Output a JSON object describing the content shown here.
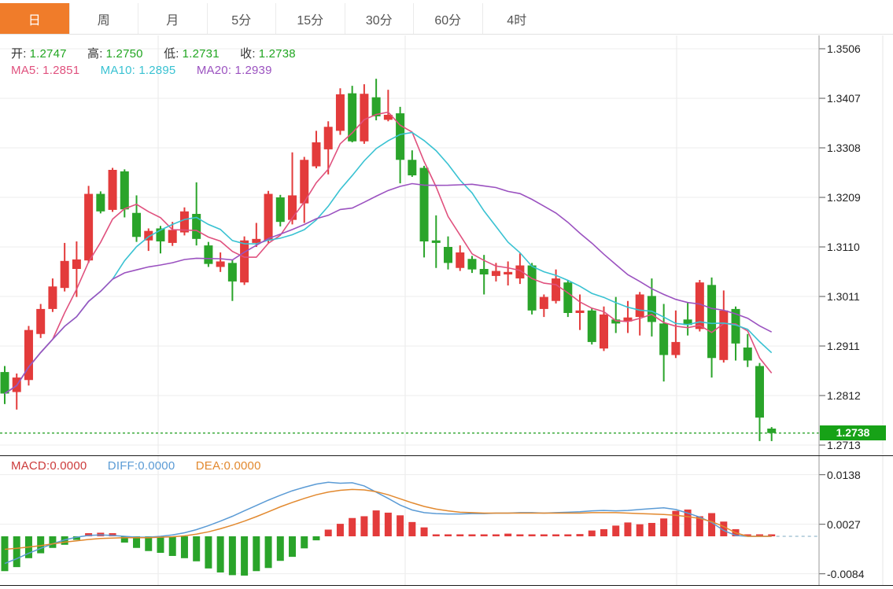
{
  "toolbar": {
    "tabs": [
      {
        "label": "日",
        "active": true
      },
      {
        "label": "周",
        "active": false
      },
      {
        "label": "月",
        "active": false
      },
      {
        "label": "5分",
        "active": false
      },
      {
        "label": "15分",
        "active": false
      },
      {
        "label": "30分",
        "active": false
      },
      {
        "label": "60分",
        "active": false
      },
      {
        "label": "4时",
        "active": false
      }
    ],
    "active_bg": "#f07c2a"
  },
  "legend_ohlc": {
    "open_label": "开:",
    "open_value": "1.2747",
    "high_label": "高:",
    "high_value": "1.2750",
    "low_label": "低:",
    "low_value": "1.2731",
    "close_label": "收:",
    "close_value": "1.2738",
    "value_color": "#21a621"
  },
  "legend_ma": {
    "ma5": "MA5: 1.2851",
    "ma5_color": "#e0517e",
    "ma10": "MA10: 1.2895",
    "ma10_color": "#39c2d2",
    "ma20": "MA20: 1.2939",
    "ma20_color": "#9b52c0"
  },
  "legend_macd": {
    "macd": "MACD:0.0000",
    "macd_color": "#cc3b3b",
    "diff": "DIFF:0.0000",
    "diff_color": "#5b9bd5",
    "dea": "DEA:0.0000",
    "dea_color": "#e2892f"
  },
  "price_axis": {
    "ticks": [
      "1.3506",
      "1.3407",
      "1.3308",
      "1.3209",
      "1.3110",
      "1.3011",
      "1.2911",
      "1.2812",
      "1.2713"
    ],
    "current_label": "1.2738",
    "current_box_color": "#17a217"
  },
  "macd_axis": {
    "ticks": [
      "0.0138",
      "0.0027",
      "-0.0084"
    ]
  },
  "colors": {
    "up": "#e33b3b",
    "down": "#2aa42a",
    "grid": "#ededed",
    "vgrid": "#e9e9e9",
    "current_line": "#2da52d",
    "macd_tail": "#a9c6d6",
    "axis_border": "#999999",
    "axis_border2": "#e5e5e5"
  },
  "chart_data": [
    {
      "type": "candlestick",
      "title": "",
      "y_ticks": [
        1.3506,
        1.3407,
        1.3308,
        1.3209,
        1.311,
        1.3011,
        1.2911,
        1.2812,
        1.2713
      ],
      "current_price": 1.2738,
      "ohlc_legend": {
        "open": 1.2747,
        "high": 1.275,
        "low": 1.2731,
        "close": 1.2738
      },
      "overlays": [
        {
          "name": "MA5",
          "period": 5,
          "value": 1.2851,
          "color": "#e0517e"
        },
        {
          "name": "MA10",
          "period": 10,
          "value": 1.2895,
          "color": "#39c2d2"
        },
        {
          "name": "MA20",
          "period": 20,
          "value": 1.2939,
          "color": "#9b52c0"
        }
      ],
      "ohlc": [
        [
          1.286,
          1.2872,
          1.2796,
          1.2817
        ],
        [
          1.282,
          1.2857,
          1.2785,
          1.2849
        ],
        [
          1.2844,
          1.2952,
          1.2833,
          1.2944
        ],
        [
          1.2936,
          1.2996,
          1.2928,
          1.2986
        ],
        [
          1.2986,
          1.3047,
          1.298,
          1.3031
        ],
        [
          1.3028,
          1.3118,
          1.3021,
          1.3082
        ],
        [
          1.3066,
          1.3121,
          1.301,
          1.3085
        ],
        [
          1.3083,
          1.3232,
          1.3078,
          1.3216
        ],
        [
          1.3216,
          1.3221,
          1.3177,
          1.3181
        ],
        [
          1.3184,
          1.3268,
          1.318,
          1.3264
        ],
        [
          1.3261,
          1.3265,
          1.3169,
          1.3185
        ],
        [
          1.3178,
          1.3213,
          1.312,
          1.313
        ],
        [
          1.3123,
          1.3147,
          1.3102,
          1.3142
        ],
        [
          1.3147,
          1.3152,
          1.3097,
          1.3121
        ],
        [
          1.3118,
          1.316,
          1.3112,
          1.3144
        ],
        [
          1.3139,
          1.3189,
          1.3133,
          1.3181
        ],
        [
          1.3176,
          1.3239,
          1.3113,
          1.3126
        ],
        [
          1.3113,
          1.312,
          1.307,
          1.3076
        ],
        [
          1.307,
          1.3099,
          1.306,
          1.3081
        ],
        [
          1.3078,
          1.3085,
          1.3002,
          1.3041
        ],
        [
          1.3039,
          1.3131,
          1.3034,
          1.3123
        ],
        [
          1.3118,
          1.3158,
          1.311,
          1.3126
        ],
        [
          1.3123,
          1.3222,
          1.3118,
          1.3216
        ],
        [
          1.3209,
          1.3214,
          1.3151,
          1.316
        ],
        [
          1.3164,
          1.3299,
          1.3155,
          1.3213
        ],
        [
          1.3197,
          1.329,
          1.3158,
          1.3284
        ],
        [
          1.3271,
          1.3342,
          1.3267,
          1.3319
        ],
        [
          1.3305,
          1.3361,
          1.3255,
          1.335
        ],
        [
          1.3342,
          1.3427,
          1.3334,
          1.3415
        ],
        [
          1.3417,
          1.3432,
          1.3319,
          1.3321
        ],
        [
          1.3321,
          1.3435,
          1.3316,
          1.3416
        ],
        [
          1.3409,
          1.3446,
          1.3363,
          1.3371
        ],
        [
          1.3364,
          1.3424,
          1.3361,
          1.3374
        ],
        [
          1.3377,
          1.339,
          1.3237,
          1.3284
        ],
        [
          1.3284,
          1.3303,
          1.325,
          1.3253
        ],
        [
          1.3268,
          1.3272,
          1.3089,
          1.3121
        ],
        [
          1.3123,
          1.3173,
          1.3068,
          1.3118
        ],
        [
          1.311,
          1.3131,
          1.3065,
          1.3078
        ],
        [
          1.3068,
          1.3113,
          1.3062,
          1.3099
        ],
        [
          1.3086,
          1.3092,
          1.3058,
          1.3065
        ],
        [
          1.3066,
          1.3094,
          1.3015,
          1.3055
        ],
        [
          1.3052,
          1.3078,
          1.3041,
          1.3062
        ],
        [
          1.3055,
          1.3081,
          1.3033,
          1.306
        ],
        [
          1.3047,
          1.3097,
          1.3036,
          1.3073
        ],
        [
          1.3073,
          1.3078,
          1.2975,
          1.2983
        ],
        [
          1.2986,
          1.3015,
          1.297,
          1.301
        ],
        [
          1.3002,
          1.3065,
          1.2997,
          1.3047
        ],
        [
          1.3039,
          1.3044,
          1.297,
          1.2978
        ],
        [
          1.2978,
          1.3015,
          1.2944,
          1.2983
        ],
        [
          1.2983,
          1.2988,
          1.2915,
          1.292
        ],
        [
          1.2907,
          1.2991,
          1.2902,
          1.2975
        ],
        [
          1.2965,
          1.301,
          1.2938,
          1.2957
        ],
        [
          1.2961,
          1.3002,
          1.2938,
          1.2969
        ],
        [
          1.297,
          1.302,
          1.2933,
          1.3015
        ],
        [
          1.3012,
          1.3047,
          1.2931,
          1.296
        ],
        [
          1.2957,
          1.2996,
          1.2841,
          1.2894
        ],
        [
          1.2894,
          1.2983,
          1.2888,
          1.292
        ],
        [
          1.2965,
          1.2999,
          1.2933,
          1.2954
        ],
        [
          1.2946,
          1.3044,
          1.2941,
          1.3039
        ],
        [
          1.3034,
          1.3049,
          1.2849,
          1.2888
        ],
        [
          1.2884,
          1.3023,
          1.2879,
          1.2983
        ],
        [
          1.2986,
          1.2991,
          1.2883,
          1.2917
        ],
        [
          1.2909,
          1.2936,
          1.287,
          1.2883
        ],
        [
          1.2872,
          1.2878,
          1.2722,
          1.2769
        ],
        [
          1.2747,
          1.275,
          1.2722,
          1.2738
        ]
      ]
    },
    {
      "type": "macd",
      "y_ticks": [
        0.0138,
        0.0027,
        -0.0084
      ],
      "legend": {
        "macd": 0.0,
        "diff": 0.0,
        "dea": 0.0
      },
      "histogram": [
        -0.0078,
        -0.0069,
        -0.0049,
        -0.0038,
        -0.0026,
        -0.0019,
        -0.0008,
        0.0007,
        0.0008,
        0.0007,
        -0.0014,
        -0.0026,
        -0.0033,
        -0.0037,
        -0.0044,
        -0.0049,
        -0.0056,
        -0.0072,
        -0.0081,
        -0.0087,
        -0.0088,
        -0.0078,
        -0.0071,
        -0.0055,
        -0.0046,
        -0.0027,
        -0.0009,
        0.0015,
        0.0028,
        0.0041,
        0.0045,
        0.0058,
        0.0053,
        0.0047,
        0.0032,
        0.002,
        0.0004,
        0.0004,
        0.0004,
        0.0004,
        0.0004,
        0.0004,
        0.0006,
        0.0004,
        0.0004,
        0.0003,
        0.0002,
        0.0004,
        0.0005,
        0.0013,
        0.0016,
        0.0024,
        0.0031,
        0.0027,
        0.003,
        0.004,
        0.0057,
        0.006,
        0.0045,
        0.0052,
        0.0033,
        0.0016,
        0.0004,
        0.0002,
        0.0001
      ],
      "diff": [
        -0.0061,
        -0.005,
        -0.0038,
        -0.0027,
        -0.0017,
        -0.0008,
        -0.0002,
        0.0002,
        0.0003,
        0.0002,
        0.0,
        -0.0002,
        -0.0002,
        0.0,
        0.0003,
        0.0008,
        0.0015,
        0.0024,
        0.0034,
        0.0045,
        0.0057,
        0.0069,
        0.0081,
        0.0092,
        0.0102,
        0.011,
        0.0117,
        0.0121,
        0.0119,
        0.012,
        0.0113,
        0.0099,
        0.0085,
        0.007,
        0.0059,
        0.0053,
        0.0051,
        0.005,
        0.005,
        0.0051,
        0.0051,
        0.0052,
        0.0052,
        0.0053,
        0.0053,
        0.0052,
        0.0053,
        0.0054,
        0.0055,
        0.0057,
        0.0058,
        0.0057,
        0.0058,
        0.006,
        0.0062,
        0.0064,
        0.006,
        0.0052,
        0.0043,
        0.0031,
        0.0013,
        0.0002,
        0.0,
        0.0,
        0.0
      ],
      "dea": [
        -0.0029,
        -0.0027,
        -0.0024,
        -0.0021,
        -0.0017,
        -0.0013,
        -0.001,
        -0.0007,
        -0.0005,
        -0.0004,
        -0.0003,
        -0.0003,
        -0.0003,
        -0.0002,
        -0.0001,
        0.0001,
        0.0005,
        0.001,
        0.0017,
        0.0025,
        0.0034,
        0.0044,
        0.0055,
        0.0066,
        0.0076,
        0.0085,
        0.0093,
        0.0099,
        0.0103,
        0.0105,
        0.0104,
        0.01,
        0.0093,
        0.0084,
        0.0075,
        0.0067,
        0.0061,
        0.0057,
        0.0054,
        0.0053,
        0.0052,
        0.0052,
        0.0052,
        0.0052,
        0.0052,
        0.0052,
        0.0052,
        0.0052,
        0.0052,
        0.0053,
        0.0053,
        0.0053,
        0.0052,
        0.0051,
        0.005,
        0.0049,
        0.0047,
        0.0044,
        0.004,
        0.0033,
        0.0022,
        0.0008,
        0.0,
        0.0,
        0.0
      ]
    }
  ]
}
